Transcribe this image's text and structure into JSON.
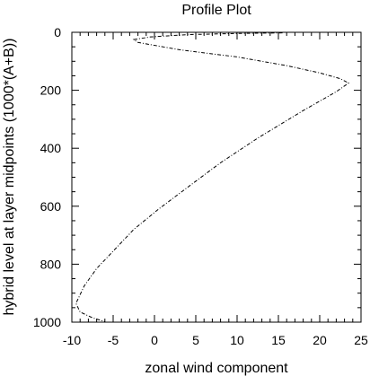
{
  "chart_data": {
    "type": "line",
    "title": "Profile Plot",
    "xlabel": "zonal wind component",
    "ylabel": "hybrid level at layer midpoints (1000*(A+B))",
    "xlim": [
      -10,
      25
    ],
    "ylim": [
      0,
      1000
    ],
    "y_inverted": true,
    "grid": false,
    "line_style": "dash-dot",
    "line_color": "#000000",
    "x_ticks": [
      -10,
      -5,
      0,
      5,
      10,
      15,
      20,
      25
    ],
    "x_tick_labels": [
      "-10",
      "-5",
      "0",
      "5",
      "10",
      "15",
      "20",
      "25"
    ],
    "y_ticks": [
      0,
      200,
      400,
      600,
      800,
      1000
    ],
    "y_tick_labels": [
      "0",
      "200",
      "400",
      "600",
      "800",
      "1000"
    ],
    "series": [
      {
        "x": [
          15.5,
          10,
          4,
          -0.5,
          -2.5,
          -2,
          3,
          10,
          16,
          20,
          22.5,
          23.5,
          22,
          18,
          12.5,
          8,
          4,
          0.5,
          -2.5,
          -5,
          -7,
          -8.5,
          -9.5,
          -9,
          -7.5,
          -6
        ],
        "y": [
          2,
          4,
          8,
          16,
          25,
          35,
          60,
          85,
          115,
          140,
          160,
          175,
          205,
          270,
          365,
          450,
          535,
          610,
          680,
          755,
          815,
          875,
          935,
          965,
          985,
          998
        ]
      }
    ]
  }
}
